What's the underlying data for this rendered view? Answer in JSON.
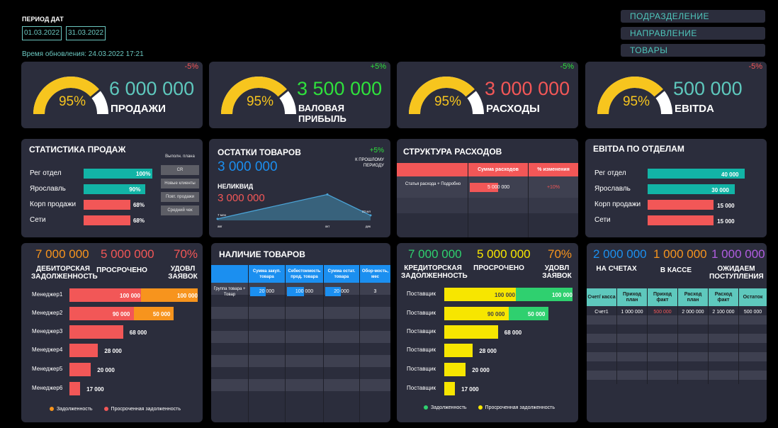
{
  "header": {
    "period_label": "ПЕРИОД ДАТ",
    "date_from": "01.03.2022",
    "date_to": "31.03.2022",
    "update_time": "Время обновления: 24.03.2022 17:21"
  },
  "filters": [
    "ПОДРАЗДЕЛЕНИЕ",
    "НАПРАВЛЕНИЕ",
    "ТОВАРЫ"
  ],
  "kpis": [
    {
      "percent": "95%",
      "gauge_fill": 0.95,
      "value": "6 000 000",
      "label": "ПРОДАЖИ",
      "change": "-5%",
      "value_color": "#5ec8bd",
      "change_color": "#f25757"
    },
    {
      "percent": "95%",
      "gauge_fill": 0.95,
      "value": "3 500 000",
      "label": "ВАЛОВАЯ ПРИБЫЛЬ",
      "change": "+5%",
      "value_color": "#2fe03c",
      "change_color": "#2fe03c"
    },
    {
      "percent": "95%",
      "gauge_fill": 0.95,
      "value": "3 000 000",
      "label": "РАСХОДЫ",
      "change": "-5%",
      "value_color": "#f25757",
      "change_color": "#2fe03c"
    },
    {
      "percent": "95%",
      "gauge_fill": 0.95,
      "value": "500 000",
      "label": "EBITDA",
      "change": "-5%",
      "value_color": "#5ec8bd",
      "change_color": "#f25757"
    }
  ],
  "sales_stats": {
    "title": "СТАТИСТИКА ПРОДАЖ",
    "rows": [
      {
        "label": "Рег отдел",
        "value": "100%",
        "fraction": 1.0,
        "color": "#12b4a6"
      },
      {
        "label": "Ярославль",
        "value": "90%",
        "fraction": 0.9,
        "color": "#12b4a6"
      },
      {
        "label": "Корп продажи",
        "value": "68%",
        "fraction": 0.68,
        "color": "#f25757"
      },
      {
        "label": "Сети",
        "value": "68%",
        "fraction": 0.68,
        "color": "#f25757"
      }
    ],
    "buttons": [
      "Выполн. плана",
      "CR",
      "Новые клиенты",
      "Повт. продажи",
      "Средний чек"
    ]
  },
  "stock": {
    "title": "ОСТАТКИ ТОВАРОВ",
    "value": "3 000 000",
    "change": "+5%",
    "change_note": "К ПРОШЛОМУ ПЕРИОДУ",
    "illiquid_label": "НЕЛИКВИД",
    "illiquid_value": "3 000 000"
  },
  "chart_data": {
    "type": "area",
    "categories": [
      "авг",
      "окт",
      "дек"
    ],
    "values": [
      7,
      119,
      23
    ],
    "value_labels": [
      "7 млн",
      "119 млн",
      "23 мл"
    ],
    "title": "",
    "xlabel": "",
    "ylabel": ""
  },
  "expense_structure": {
    "title": "СТРУКТУРА РАСХОДОВ",
    "headers": [
      "",
      "Сумма расходов",
      "% изменения"
    ],
    "row_label": "Статья расхода + Подробно",
    "amount": "5 000 000",
    "amount_fraction": 0.5,
    "change": "+10%"
  },
  "ebitda_depts": {
    "title": "EBITDA ПО ОТДЕЛАМ",
    "rows": [
      {
        "label": "Рег отдел",
        "value": "40 000",
        "fraction": 1.0,
        "color": "#12b4a6"
      },
      {
        "label": "Ярославль",
        "value": "30 000",
        "fraction": 0.9,
        "color": "#12b4a6"
      },
      {
        "label": "Корп продажи",
        "value": "15 000",
        "fraction": 0.68,
        "color": "#f25757"
      },
      {
        "label": "Сети",
        "value": "15 000",
        "fraction": 0.68,
        "color": "#f25757"
      }
    ]
  },
  "receivables": {
    "values": [
      {
        "value": "7 000 000",
        "label": "ДЕБИТОРСКАЯ ЗАДОЛЖЕННОСТЬ",
        "color": "#f7941d"
      },
      {
        "value": "5 000 000",
        "label": "ПРОСРОЧЕНО",
        "color": "#f25757"
      },
      {
        "value": "70%",
        "label": "УДОВЛ ЗАЯВОК",
        "color": "#f25757"
      }
    ],
    "managers": [
      {
        "name": "Менеджер1",
        "a": "100 000",
        "af": 1.0,
        "b": "100 000",
        "bf": 1.0
      },
      {
        "name": "Менеджер2",
        "a": "90 000",
        "af": 0.9,
        "b": "50 000",
        "bf": 0.7
      },
      {
        "name": "Менеджер3",
        "a": "68 000",
        "af": 0.75,
        "b": "",
        "bf": 0
      },
      {
        "name": "Менеджер4",
        "a": "28 000",
        "af": 0.4,
        "b": "",
        "bf": 0
      },
      {
        "name": "Менеджер5",
        "a": "20 000",
        "af": 0.3,
        "b": "",
        "bf": 0
      },
      {
        "name": "Менеджер6",
        "a": "17 000",
        "af": 0.15,
        "b": "",
        "bf": 0
      }
    ],
    "legend": [
      "Задолженность",
      "Просроченная задолженность"
    ]
  },
  "goods_availability": {
    "title": "НАЛИЧИЕ ТОВАРОВ",
    "headers": [
      "",
      "Сумма закуп. товара",
      "Себестоимость прод. товара",
      "Сумма остат. товара",
      "Обор-мость, мес"
    ],
    "row_label": "Группа товара + Товар",
    "values": [
      "20 000",
      "100 000",
      "20 000",
      "3"
    ]
  },
  "payables": {
    "values": [
      {
        "value": "7 000 000",
        "label": "КРЕДИТОРСКАЯ ЗАДОЛЖЕННОСТЬ",
        "color": "#2fd06f"
      },
      {
        "value": "5 000 000",
        "label": "ПРОСРОЧЕНО",
        "color": "#f7e600"
      },
      {
        "value": "70%",
        "label": "УДОВЛ ЗАЯВОК",
        "color": "#f7941d"
      }
    ],
    "suppliers": [
      {
        "name": "Поставщик",
        "a": "100 000",
        "af": 1.0,
        "b": "100 000",
        "bf": 1.0
      },
      {
        "name": "Поставщик",
        "a": "90 000",
        "af": 0.9,
        "b": "50 000",
        "bf": 0.7
      },
      {
        "name": "Поставщик",
        "a": "68 000",
        "af": 0.75,
        "b": "",
        "bf": 0
      },
      {
        "name": "Поставщик",
        "a": "28 000",
        "af": 0.4,
        "b": "",
        "bf": 0
      },
      {
        "name": "Поставщик",
        "a": "20 000",
        "af": 0.3,
        "b": "",
        "bf": 0
      },
      {
        "name": "Поставщик",
        "a": "17 000",
        "af": 0.15,
        "b": "",
        "bf": 0
      }
    ],
    "legend": [
      "Задолженность",
      "Просроченная задолженность"
    ]
  },
  "cash": {
    "values": [
      {
        "value": "2 000 000",
        "label": "НА СЧЕТАХ",
        "color": "#1b8ff0"
      },
      {
        "value": "1 000 000",
        "label": "В КАССЕ",
        "color": "#f7941d"
      },
      {
        "value": "1 000 000",
        "label": "ОЖИДАЕМ ПОСТУПЛЕНИЯ",
        "color": "#b05de0"
      }
    ],
    "headers": [
      "Счет/ касса",
      "Приход план",
      "Приход факт",
      "Расход план",
      "Расход факт",
      "Остаток"
    ],
    "row": [
      "Счет1",
      "1 000 000",
      "500 000",
      "2 000 000",
      "2 100 000",
      "500 000"
    ]
  }
}
